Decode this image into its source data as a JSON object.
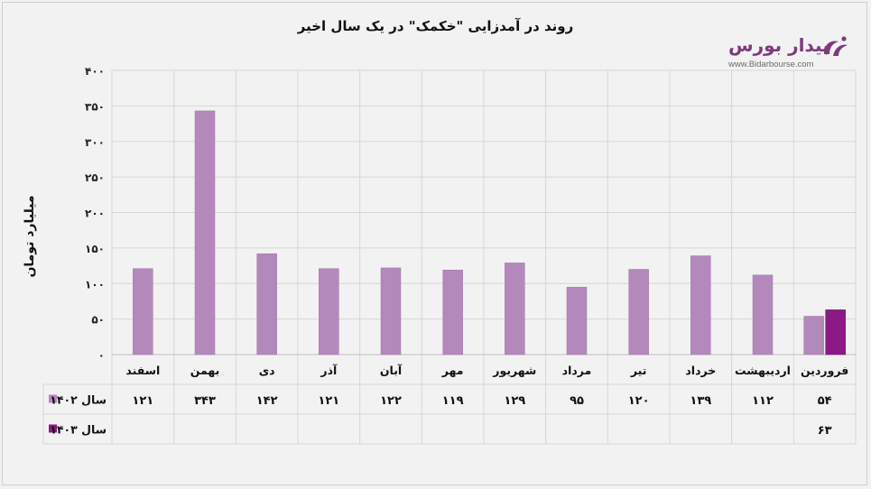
{
  "chart_data": {
    "type": "bar",
    "title": "روند در آمدزایی \"خکمک\" در یک سال اخیر",
    "ylabel": "میلیارد تومان",
    "ylim": [
      0,
      400
    ],
    "yticks": [
      "۰",
      "۵۰",
      "۱۰۰",
      "۱۵۰",
      "۲۰۰",
      "۲۵۰",
      "۳۰۰",
      "۳۵۰",
      "۴۰۰"
    ],
    "categories": [
      "اسفند",
      "بهمن",
      "دی",
      "آذر",
      "آبان",
      "مهر",
      "شهریور",
      "مرداد",
      "تیر",
      "خرداد",
      "اردیبهشت",
      "فروردین"
    ],
    "series": [
      {
        "name": "سال ۱۴۰۲",
        "color": "#b389bb",
        "values": [
          121,
          343,
          142,
          121,
          122,
          119,
          129,
          95,
          120,
          139,
          112,
          54
        ],
        "labels": [
          "۱۲۱",
          "۳۴۳",
          "۱۴۲",
          "۱۲۱",
          "۱۲۲",
          "۱۱۹",
          "۱۲۹",
          "۹۵",
          "۱۲۰",
          "۱۳۹",
          "۱۱۲",
          "۵۴"
        ]
      },
      {
        "name": "سال ۱۴۰۳",
        "color": "#8c1a84",
        "values": [
          null,
          null,
          null,
          null,
          null,
          null,
          null,
          null,
          null,
          null,
          null,
          63
        ],
        "labels": [
          "",
          "",
          "",
          "",
          "",
          "",
          "",
          "",
          "",
          "",
          "",
          "۶۳"
        ]
      }
    ],
    "grid": true,
    "legend": "data-table"
  },
  "logo": {
    "name": "بیدار بورس",
    "url": "www.Bidarbourse.com"
  }
}
